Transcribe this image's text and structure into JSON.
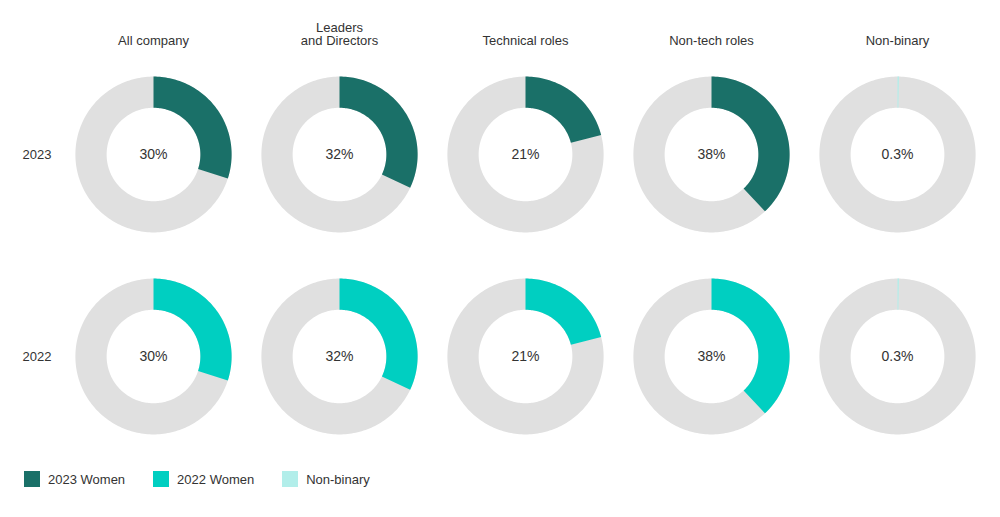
{
  "chart_data": {
    "type": "donut",
    "categories": [
      "All company",
      "Leaders\nand Directors",
      "Technical roles",
      "Non-tech roles",
      "Non-binary"
    ],
    "series": [
      {
        "name": "2023",
        "colors": [
          "#1a7068",
          "#1a7068",
          "#1a7068",
          "#1a7068",
          "#b2eeea"
        ],
        "values": [
          30,
          32,
          21,
          38,
          0.3
        ],
        "value_labels": [
          "30%",
          "32%",
          "21%",
          "38%",
          "0.3%"
        ]
      },
      {
        "name": "2022",
        "colors": [
          "#00cfc1",
          "#00cfc1",
          "#00cfc1",
          "#00cfc1",
          "#b2eeea"
        ],
        "values": [
          30,
          32,
          21,
          38,
          0.3
        ],
        "value_labels": [
          "30%",
          "32%",
          "21%",
          "38%",
          "0.3%"
        ]
      }
    ],
    "remainder_color": "#e0e0e0",
    "data_labels": true,
    "legend": "lower left",
    "legend_items": [
      {
        "name": "2023 Women",
        "color": "#1a7068"
      },
      {
        "name": "2022 Women",
        "color": "#00cfc1"
      },
      {
        "name": "Non-binary",
        "color": "#b2eeea"
      }
    ]
  }
}
